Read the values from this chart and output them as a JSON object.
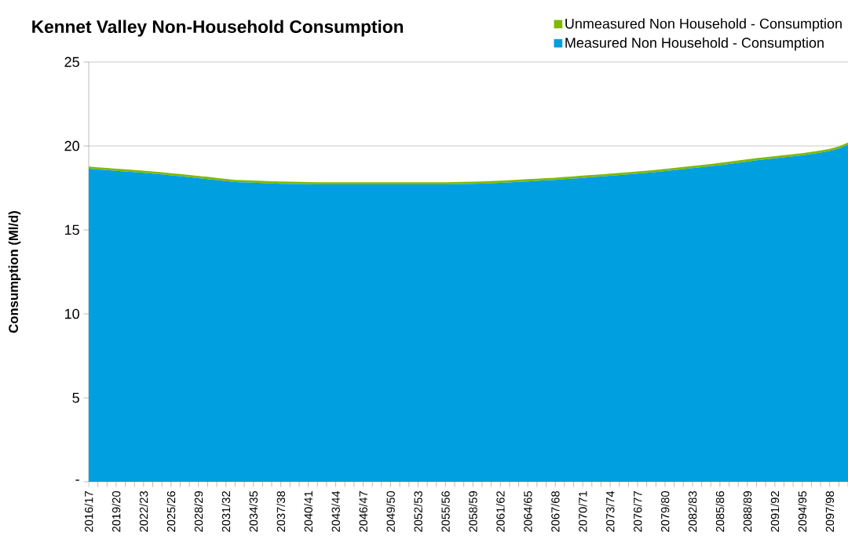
{
  "chart_data": {
    "type": "area",
    "stacked": true,
    "title": "Kennet Valley Non-Household Consumption",
    "ylabel": "Consumption (Ml/d)",
    "categories": [
      "2016/17",
      null,
      null,
      "2019/20",
      null,
      null,
      "2022/23",
      null,
      null,
      "2025/26",
      null,
      null,
      "2028/29",
      null,
      null,
      "2031/32",
      null,
      null,
      "2034/35",
      null,
      null,
      "2037/38",
      null,
      null,
      "2040/41",
      null,
      null,
      "2043/44",
      null,
      null,
      "2046/47",
      null,
      null,
      "2049/50",
      null,
      null,
      "2052/53",
      null,
      null,
      "2055/56",
      null,
      null,
      "2058/59",
      null,
      null,
      "2061/62",
      null,
      null,
      "2064/65",
      null,
      null,
      "2067/68",
      null,
      null,
      "2070/71",
      null,
      null,
      "2073/74",
      null,
      null,
      "2076/77",
      null,
      null,
      "2079/80",
      null,
      null,
      "2082/83",
      null,
      null,
      "2085/86",
      null,
      null,
      "2088/89",
      null,
      null,
      "2091/92",
      null,
      null,
      "2094/95",
      null,
      null,
      "2097/98",
      null,
      null
    ],
    "series": [
      {
        "name": "Measured Non Household - Consumption",
        "color": "#009fdf",
        "values": [
          18.64,
          18.6,
          18.56,
          18.52,
          18.48,
          18.44,
          18.4,
          18.35,
          18.3,
          18.25,
          18.2,
          18.14,
          18.08,
          18.03,
          17.97,
          17.91,
          17.85,
          17.83,
          17.81,
          17.79,
          17.77,
          17.75,
          17.74,
          17.73,
          17.72,
          17.71,
          17.71,
          17.71,
          17.71,
          17.71,
          17.71,
          17.71,
          17.71,
          17.71,
          17.71,
          17.71,
          17.71,
          17.71,
          17.71,
          17.71,
          17.72,
          17.73,
          17.74,
          17.76,
          17.78,
          17.8,
          17.83,
          17.86,
          17.89,
          17.92,
          17.95,
          17.98,
          18.02,
          18.06,
          18.1,
          18.14,
          18.18,
          18.22,
          18.26,
          18.3,
          18.35,
          18.4,
          18.45,
          18.5,
          18.56,
          18.62,
          18.68,
          18.74,
          18.8,
          18.86,
          18.93,
          19.0,
          19.07,
          19.15,
          19.2,
          19.26,
          19.32,
          19.38,
          19.44,
          19.52,
          19.6,
          19.7,
          19.85,
          20.07
        ]
      },
      {
        "name": "Unmeasured Non Household - Consumption",
        "color": "#7fba00",
        "values": [
          0.13,
          0.13,
          0.13,
          0.13,
          0.13,
          0.13,
          0.13,
          0.13,
          0.13,
          0.13,
          0.13,
          0.13,
          0.13,
          0.13,
          0.13,
          0.13,
          0.13,
          0.13,
          0.13,
          0.13,
          0.13,
          0.13,
          0.13,
          0.13,
          0.13,
          0.13,
          0.13,
          0.13,
          0.13,
          0.13,
          0.13,
          0.13,
          0.13,
          0.13,
          0.13,
          0.13,
          0.13,
          0.13,
          0.13,
          0.13,
          0.13,
          0.13,
          0.13,
          0.13,
          0.13,
          0.13,
          0.13,
          0.13,
          0.13,
          0.13,
          0.13,
          0.13,
          0.13,
          0.13,
          0.13,
          0.13,
          0.13,
          0.13,
          0.13,
          0.13,
          0.13,
          0.13,
          0.13,
          0.13,
          0.13,
          0.13,
          0.13,
          0.13,
          0.13,
          0.13,
          0.13,
          0.13,
          0.13,
          0.13,
          0.13,
          0.13,
          0.13,
          0.13,
          0.13,
          0.13,
          0.13,
          0.13,
          0.13,
          0.13
        ]
      }
    ],
    "ylim": [
      0,
      25
    ],
    "yticks": [
      {
        "value": 0,
        "label": "-"
      },
      5,
      10,
      15,
      20,
      25
    ],
    "grid": "y",
    "legend": "top right"
  }
}
